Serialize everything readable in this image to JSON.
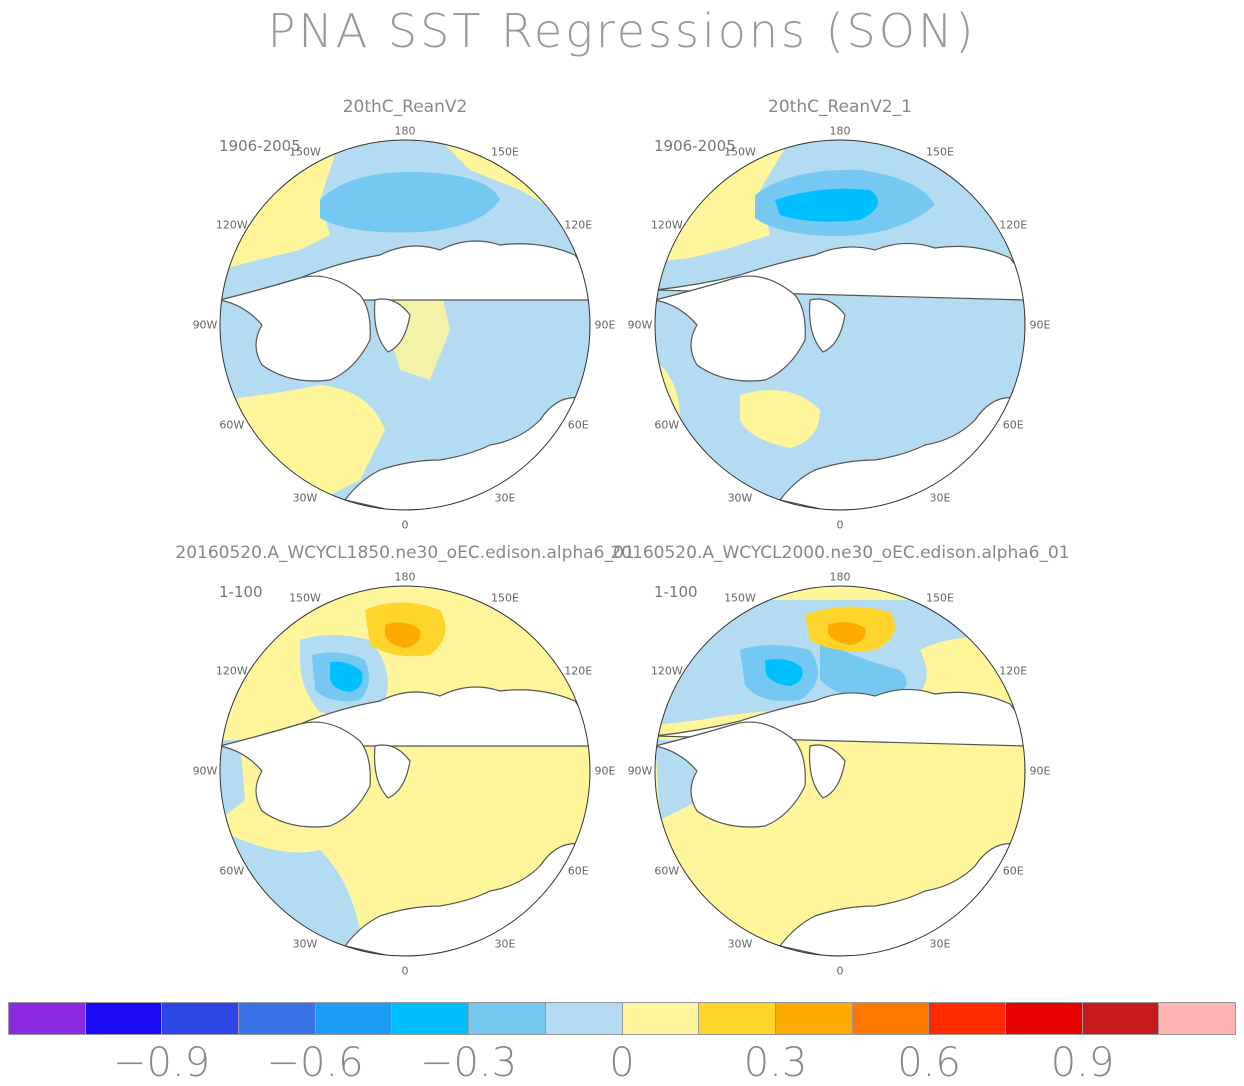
{
  "title": "PNA SST Regressions (SON)",
  "panels": [
    {
      "title": "20thC_ReanV2",
      "period": "1906-2005"
    },
    {
      "title": "20thC_ReanV2_1",
      "period": "1906-2005"
    },
    {
      "title": "20160520.A_WCYCL1850.ne30_oEC.edison.alpha6_01",
      "period": "1-100"
    },
    {
      "title": "20160520.A_WCYCL2000.ne30_oEC.edison.alpha6_01",
      "period": "1-100"
    }
  ],
  "longitude_labels": [
    "180",
    "150E",
    "120E",
    "90E",
    "60E",
    "30E",
    "0",
    "30W",
    "60W",
    "90W",
    "120W",
    "150W"
  ],
  "colorbar": {
    "colors": [
      "#8a2be2",
      "#1b0cf5",
      "#2f46e6",
      "#3a72e8",
      "#1e9bf5",
      "#00bfff",
      "#75c8f2",
      "#b3dcf2",
      "#fff69c",
      "#ffd42b",
      "#ffaa00",
      "#ff7800",
      "#ff2a00",
      "#e60000",
      "#c81a1a",
      "#ffb3b3"
    ],
    "labels": [
      "-0.9",
      "-0.6",
      "-0.3",
      "0",
      "0.3",
      "0.6",
      "0.9"
    ]
  }
}
